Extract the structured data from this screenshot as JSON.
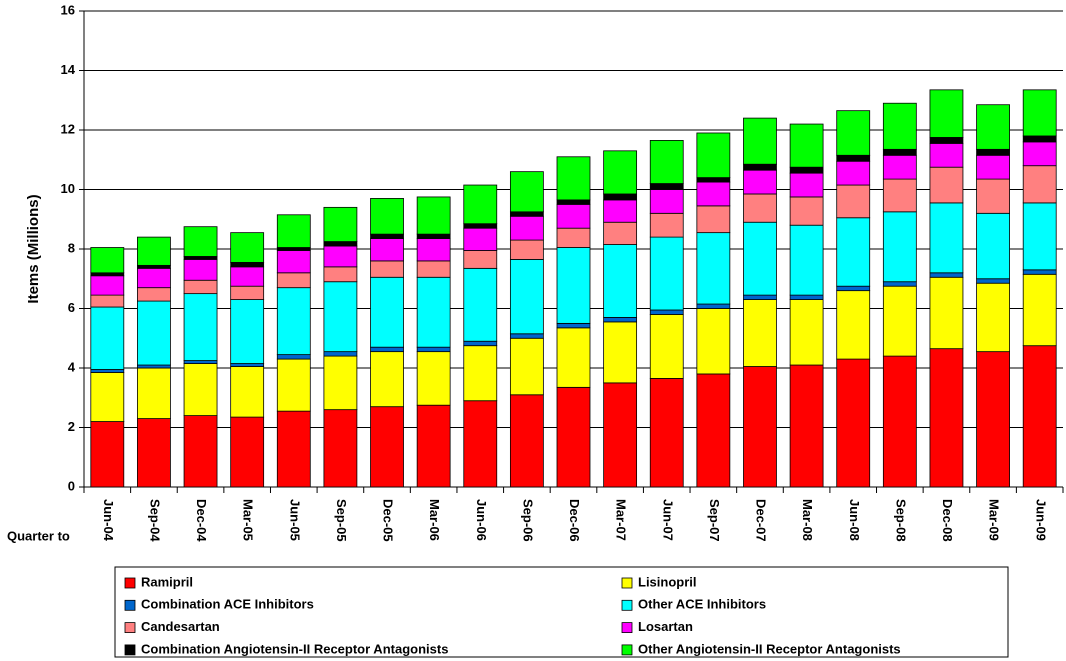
{
  "chart_data": {
    "type": "stacked_bar",
    "y_label": "Items (Millions)",
    "x_label": "Quarter to",
    "categories": [
      "Jun-04",
      "Sep-04",
      "Dec-04",
      "Mar-05",
      "Jun-05",
      "Sep-05",
      "Dec-05",
      "Mar-06",
      "Jun-06",
      "Sep-06",
      "Dec-06",
      "Mar-07",
      "Jun-07",
      "Sep-07",
      "Dec-07",
      "Mar-08",
      "Jun-08",
      "Sep-08",
      "Dec-08",
      "Mar-09",
      "Jun-09"
    ],
    "series": [
      {
        "name": "Ramipril",
        "color": "#ff0000",
        "values": [
          2.2,
          2.3,
          2.4,
          2.35,
          2.55,
          2.6,
          2.7,
          2.75,
          2.9,
          3.1,
          3.35,
          3.5,
          3.65,
          3.8,
          4.05,
          4.1,
          4.3,
          4.4,
          4.65,
          4.55,
          4.75
        ]
      },
      {
        "name": "Lisinopril",
        "color": "#ffff00",
        "values": [
          1.65,
          1.7,
          1.75,
          1.7,
          1.75,
          1.8,
          1.85,
          1.8,
          1.85,
          1.9,
          2.0,
          2.05,
          2.15,
          2.2,
          2.25,
          2.2,
          2.3,
          2.35,
          2.4,
          2.3,
          2.4
        ]
      },
      {
        "name": "Combination ACE Inhibitors",
        "color": "#0066cc",
        "values": [
          0.1,
          0.1,
          0.1,
          0.1,
          0.15,
          0.15,
          0.15,
          0.15,
          0.15,
          0.15,
          0.15,
          0.15,
          0.15,
          0.15,
          0.15,
          0.15,
          0.15,
          0.15,
          0.15,
          0.15,
          0.15
        ]
      },
      {
        "name": "Other ACE Inhibitors",
        "color": "#00ffff",
        "values": [
          2.1,
          2.15,
          2.25,
          2.15,
          2.25,
          2.35,
          2.35,
          2.35,
          2.45,
          2.5,
          2.55,
          2.45,
          2.45,
          2.4,
          2.45,
          2.35,
          2.3,
          2.35,
          2.35,
          2.2,
          2.25
        ]
      },
      {
        "name": "Candesartan",
        "color": "#ff8080",
        "values": [
          0.4,
          0.45,
          0.45,
          0.45,
          0.5,
          0.5,
          0.55,
          0.55,
          0.6,
          0.65,
          0.65,
          0.75,
          0.8,
          0.9,
          0.95,
          0.95,
          1.1,
          1.1,
          1.2,
          1.15,
          1.25
        ]
      },
      {
        "name": "Losartan",
        "color": "#ff00ff",
        "values": [
          0.65,
          0.65,
          0.7,
          0.65,
          0.75,
          0.7,
          0.75,
          0.75,
          0.75,
          0.8,
          0.8,
          0.75,
          0.8,
          0.8,
          0.8,
          0.8,
          0.8,
          0.8,
          0.8,
          0.8,
          0.8
        ]
      },
      {
        "name": "Combination Angiotensin-II Receptor Antagonists",
        "color": "#000000",
        "values": [
          0.1,
          0.1,
          0.1,
          0.15,
          0.1,
          0.15,
          0.15,
          0.15,
          0.15,
          0.15,
          0.15,
          0.2,
          0.2,
          0.15,
          0.2,
          0.2,
          0.2,
          0.2,
          0.2,
          0.2,
          0.2
        ]
      },
      {
        "name": "Other Angiotensin-II Receptor Antagonists",
        "color": "#00ff00",
        "values": [
          0.85,
          0.95,
          1.0,
          1.0,
          1.1,
          1.15,
          1.2,
          1.25,
          1.3,
          1.35,
          1.45,
          1.45,
          1.45,
          1.5,
          1.55,
          1.45,
          1.5,
          1.55,
          1.6,
          1.5,
          1.55
        ]
      }
    ],
    "ylim": [
      0,
      16
    ],
    "yticks": [
      0,
      2,
      4,
      6,
      8,
      10,
      12,
      14,
      16
    ],
    "grid": true
  }
}
